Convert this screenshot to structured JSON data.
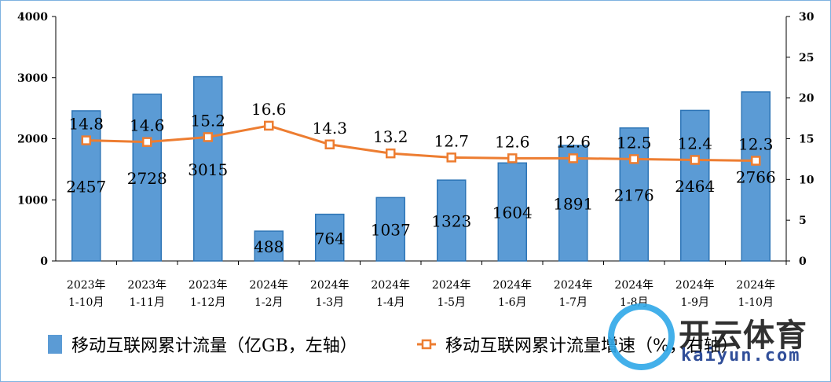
{
  "chart_data": {
    "type": "bar+line",
    "categories": [
      "2023年\n1-10月",
      "2023年\n1-11月",
      "2023年\n1-12月",
      "2024年\n1-2月",
      "2024年\n1-3月",
      "2024年\n1-4月",
      "2024年\n1-5月",
      "2024年\n1-6月",
      "2024年\n1-7月",
      "2024年\n1-8月",
      "2024年\n1-9月",
      "2024年\n1-10月"
    ],
    "series": [
      {
        "name": "移动互联网累计流量（亿GB，左轴）",
        "type": "bar",
        "axis": "left",
        "color": "#5b9bd5",
        "values": [
          2457,
          2728,
          3015,
          488,
          764,
          1037,
          1323,
          1604,
          1891,
          2176,
          2464,
          2766
        ]
      },
      {
        "name": "移动互联网累计流量增速（%，右轴）",
        "type": "line",
        "axis": "right",
        "color": "#ed7d31",
        "values": [
          14.8,
          14.6,
          15.2,
          16.6,
          14.3,
          13.2,
          12.7,
          12.6,
          12.6,
          12.5,
          12.4,
          12.3
        ]
      }
    ],
    "left_axis": {
      "range": [
        0,
        4000
      ],
      "ticks": [
        0,
        1000,
        2000,
        3000,
        4000
      ]
    },
    "right_axis": {
      "range": [
        0,
        30
      ],
      "ticks": [
        0,
        5,
        10,
        15,
        20,
        25,
        30
      ]
    },
    "legend": "bottom",
    "grid": false
  },
  "watermark": {
    "cn": "开云体育",
    "en": "kaiyun.com"
  }
}
